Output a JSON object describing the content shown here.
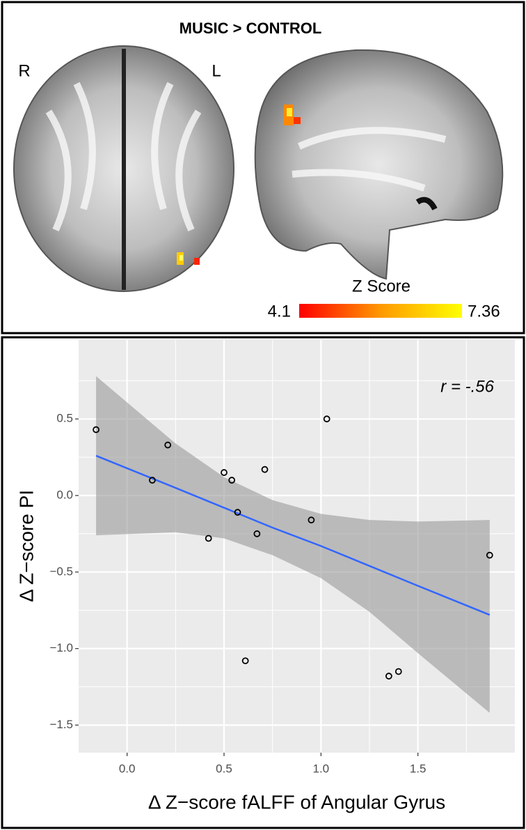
{
  "brain_panel": {
    "title": "MUSIC > CONTROL",
    "left_label": "R",
    "right_label": "L",
    "colorbar": {
      "label": "Z Score",
      "min": 4.1,
      "max": 7.36
    }
  },
  "chart_data": {
    "type": "scatter",
    "annotation": "r = -.56",
    "x_label": "Δ Z−score fALFF of Angular Gyrus",
    "y_label": "Δ Z−score PI",
    "x": [
      -0.16,
      0.21,
      0.13,
      0.5,
      0.54,
      0.71,
      0.57,
      0.42,
      0.67,
      0.95,
      1.03,
      0.61,
      1.35,
      1.4,
      1.87
    ],
    "y": [
      0.43,
      0.33,
      0.1,
      0.15,
      0.1,
      0.17,
      -0.11,
      -0.28,
      -0.25,
      -0.16,
      0.5,
      -1.08,
      -1.18,
      -1.15,
      -0.39
    ],
    "point_color": "#000000",
    "fit": {
      "color": "#3366ff",
      "x": [
        -0.16,
        0.25,
        0.5,
        0.75,
        1.0,
        1.25,
        1.5,
        1.87
      ],
      "y": [
        0.26,
        0.05,
        -0.08,
        -0.21,
        -0.33,
        -0.46,
        -0.59,
        -0.78
      ],
      "lower": [
        -0.26,
        -0.24,
        -0.28,
        -0.39,
        -0.54,
        -0.76,
        -1.03,
        -1.42
      ],
      "upper": [
        0.78,
        0.34,
        0.12,
        -0.03,
        -0.12,
        -0.16,
        -0.17,
        -0.16
      ]
    },
    "xlim": [
      -0.25,
      2.0
    ],
    "ylim": [
      -1.68,
      1.02
    ],
    "xticks": [
      {
        "value": 0,
        "label": "0.0"
      },
      0.5,
      {
        "value": 1,
        "label": "1.0"
      },
      1.5
    ],
    "yticks": [
      0.5,
      {
        "value": 0,
        "label": "0.0"
      },
      {
        "value": -0.5,
        "label": "−0.5"
      },
      {
        "value": -1,
        "label": "−1.0"
      },
      {
        "value": -1.5,
        "label": "−1.5"
      }
    ],
    "minor_xticks": [
      0.25,
      0.75,
      1.25,
      1.75
    ],
    "minor_yticks": [
      0.75,
      0.25,
      -0.25,
      -0.75,
      -1.25
    ],
    "grid": true
  }
}
